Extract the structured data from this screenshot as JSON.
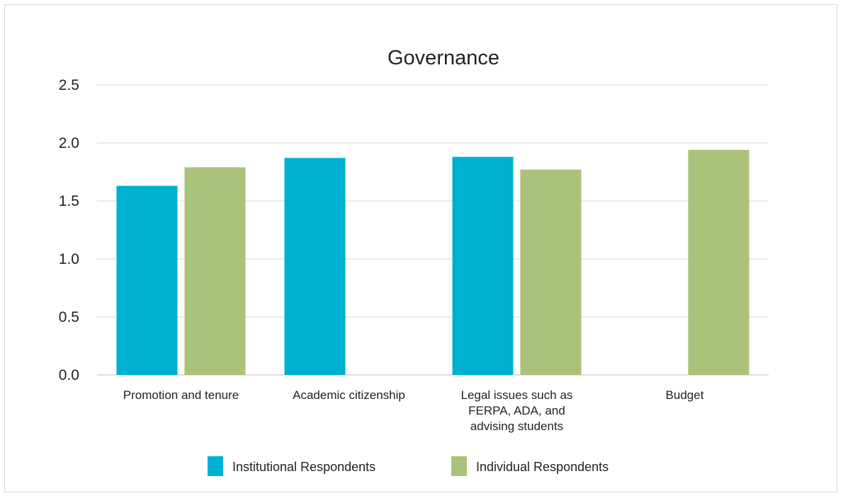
{
  "chart_data": {
    "type": "bar",
    "title": "Governance",
    "xlabel": "",
    "ylabel": "",
    "ylim": [
      0,
      2.5
    ],
    "yticks": [
      "0.0",
      "0.5",
      "1.0",
      "1.5",
      "2.0",
      "2.5"
    ],
    "grid": true,
    "legend_position": "bottom",
    "categories": [
      [
        "Promotion and tenure"
      ],
      [
        "Academic citizenship"
      ],
      [
        "Legal issues such as",
        "FERPA, ADA, and",
        "advising students"
      ],
      [
        "Budget"
      ]
    ],
    "series": [
      {
        "name": "Institutional Respondents",
        "color": "#00b0d0",
        "values": [
          1.63,
          1.87,
          1.88,
          null
        ]
      },
      {
        "name": "Individual Respondents",
        "color": "#abc27a",
        "values": [
          1.79,
          null,
          1.77,
          1.94
        ]
      }
    ]
  }
}
